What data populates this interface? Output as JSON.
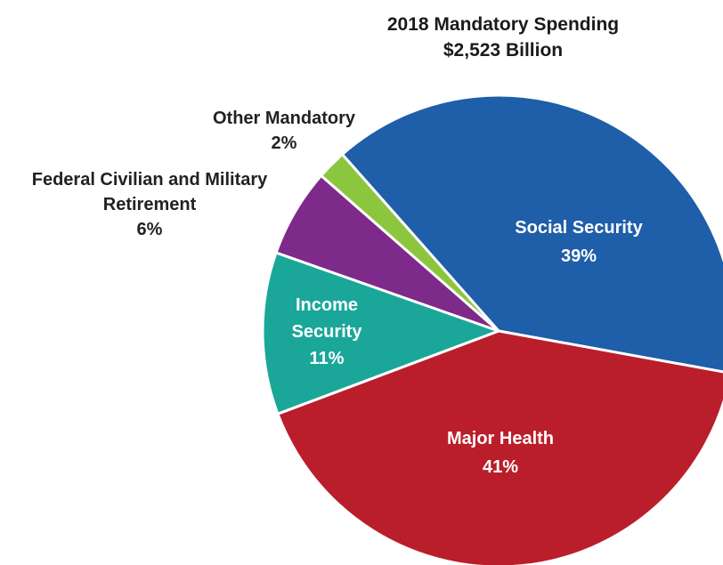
{
  "chart_data": {
    "type": "pie",
    "title": "2018 Mandatory Spending",
    "subtitle": "$2,523 Billion",
    "slices": [
      {
        "name": "Social Security",
        "label_lines": [
          "Social Security"
        ],
        "value": 39,
        "value_label": "39%",
        "color": "#1f5ea8",
        "label_placement": "inside"
      },
      {
        "name": "Major Health",
        "label_lines": [
          "Major Health"
        ],
        "value": 41,
        "value_label": "41%",
        "color": "#ba1e2a",
        "label_placement": "inside"
      },
      {
        "name": "Income Security",
        "label_lines": [
          "Income",
          "Security"
        ],
        "value": 11,
        "value_label": "11%",
        "color": "#1aa79a",
        "label_placement": "inside"
      },
      {
        "name": "Federal Civilian and Military Retirement",
        "label_lines": [
          "Federal Civilian and Military",
          "Retirement"
        ],
        "value": 6,
        "value_label": "6%",
        "color": "#7e2a8a",
        "label_placement": "outside"
      },
      {
        "name": "Other Mandatory",
        "label_lines": [
          "Other Mandatory"
        ],
        "value": 2,
        "value_label": "2%",
        "color": "#8cc63f",
        "label_placement": "outside"
      }
    ]
  }
}
